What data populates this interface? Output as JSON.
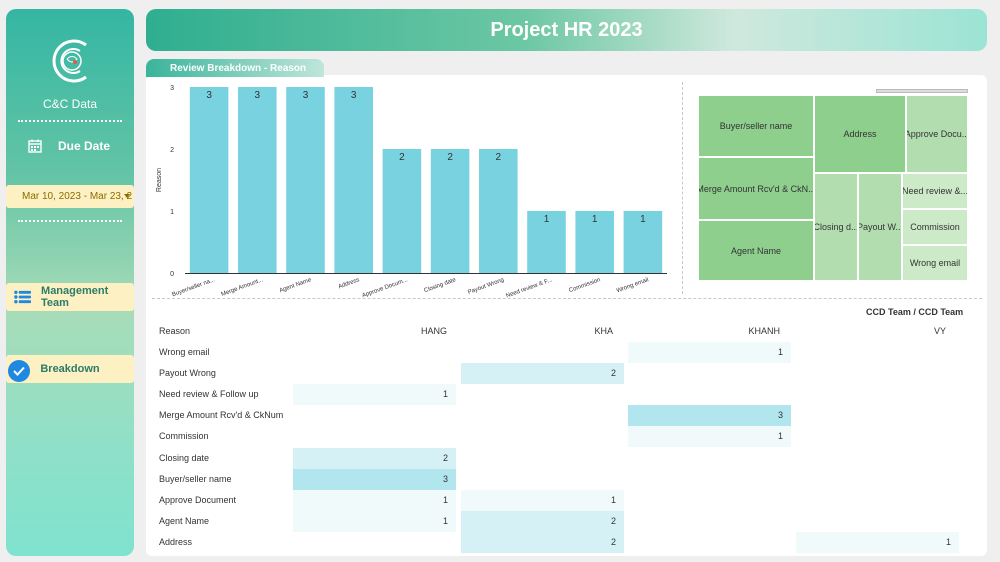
{
  "sidebar": {
    "brand": "C&C Data",
    "due_date_label": "Due Date",
    "date_range": "Mar 10, 2023 - Mar 23, 2",
    "nav": [
      {
        "label": "Management Team"
      },
      {
        "label": "Breakdown"
      }
    ]
  },
  "header": {
    "title": "Project HR 2023"
  },
  "tab": {
    "label": "Review Breakdown - Reason"
  },
  "chart_data": {
    "type": "bar",
    "categories": [
      "Buyer/seller na...",
      "Merge Amount...",
      "Agent Name",
      "Address",
      "Approve Docum...",
      "Closing date",
      "Payout Wrong",
      "Need review & F...",
      "Commission",
      "Wrong email"
    ],
    "values": [
      3,
      3,
      3,
      3,
      2,
      2,
      2,
      1,
      1,
      1
    ],
    "ylabel": "Reason",
    "ylim": [
      0,
      3
    ],
    "yticks": [
      "0",
      "1",
      "2",
      "3"
    ],
    "bar_color": "#79d2e0"
  },
  "treemap": {
    "items": [
      {
        "label": "Buyer/seller name",
        "value": 3
      },
      {
        "label": "Merge Amount Rcv'd & CkN...",
        "value": 3
      },
      {
        "label": "Agent Name",
        "value": 3
      },
      {
        "label": "Address",
        "value": 3
      },
      {
        "label": "Approve Docu...",
        "value": 2
      },
      {
        "label": "Closing d...",
        "value": 2
      },
      {
        "label": "Payout W...",
        "value": 2
      },
      {
        "label": "Need review &...",
        "value": 1
      },
      {
        "label": "Commission",
        "value": 1
      },
      {
        "label": "Wrong email",
        "value": 1
      }
    ]
  },
  "table": {
    "group_header": "CCD Team / CCD Team",
    "row_header": "Reason",
    "columns": [
      "HANG",
      "KHA",
      "KHANH",
      "VY"
    ],
    "rows": [
      {
        "reason": "Wrong email",
        "values": [
          "",
          "",
          "1",
          ""
        ]
      },
      {
        "reason": "Payout Wrong",
        "values": [
          "",
          "2",
          "",
          ""
        ]
      },
      {
        "reason": "Need review & Follow up",
        "values": [
          "1",
          "",
          "",
          ""
        ]
      },
      {
        "reason": "Merge Amount Rcv'd & CkNum",
        "values": [
          "",
          "",
          "3",
          ""
        ]
      },
      {
        "reason": "Commission",
        "values": [
          "",
          "",
          "1",
          ""
        ]
      },
      {
        "reason": "Closing date",
        "values": [
          "2",
          "",
          "",
          ""
        ]
      },
      {
        "reason": "Buyer/seller name",
        "values": [
          "3",
          "",
          "",
          ""
        ]
      },
      {
        "reason": "Approve Document",
        "values": [
          "1",
          "1",
          "",
          ""
        ]
      },
      {
        "reason": "Agent Name",
        "values": [
          "1",
          "2",
          "",
          ""
        ]
      },
      {
        "reason": "Address",
        "values": [
          "",
          "2",
          "",
          "1"
        ]
      }
    ]
  }
}
